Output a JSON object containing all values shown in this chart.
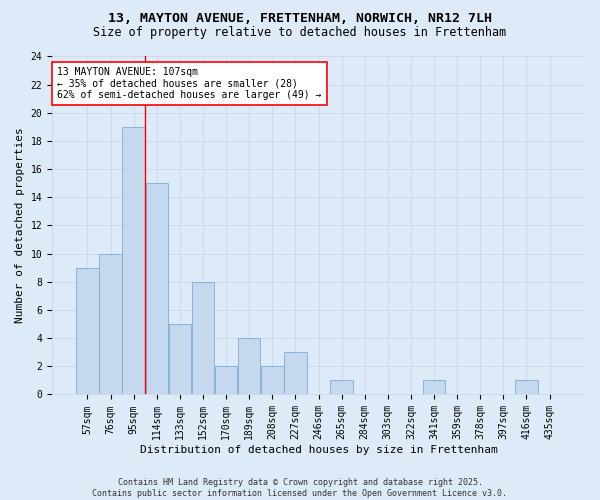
{
  "title1": "13, MAYTON AVENUE, FRETTENHAM, NORWICH, NR12 7LH",
  "title2": "Size of property relative to detached houses in Frettenham",
  "xlabel": "Distribution of detached houses by size in Frettenham",
  "ylabel": "Number of detached properties",
  "categories": [
    "57sqm",
    "76sqm",
    "95sqm",
    "114sqm",
    "133sqm",
    "152sqm",
    "170sqm",
    "189sqm",
    "208sqm",
    "227sqm",
    "246sqm",
    "265sqm",
    "284sqm",
    "303sqm",
    "322sqm",
    "341sqm",
    "359sqm",
    "378sqm",
    "397sqm",
    "416sqm",
    "435sqm"
  ],
  "values": [
    9,
    10,
    19,
    15,
    5,
    8,
    2,
    4,
    2,
    3,
    0,
    1,
    0,
    0,
    0,
    1,
    0,
    0,
    0,
    1,
    0
  ],
  "bar_color": "#c5d8ed",
  "bar_edge_color": "#7aaed6",
  "grid_color": "#c8d8e8",
  "bg_color": "#ddeaf7",
  "red_line_index": 2,
  "annotation_line1": "13 MAYTON AVENUE: 107sqm",
  "annotation_line2": "← 35% of detached houses are smaller (28)",
  "annotation_line3": "62% of semi-detached houses are larger (49) →",
  "annotation_box_color": "white",
  "annotation_box_edge": "red",
  "ylim": [
    0,
    24
  ],
  "yticks": [
    0,
    2,
    4,
    6,
    8,
    10,
    12,
    14,
    16,
    18,
    20,
    22,
    24
  ],
  "footer": "Contains HM Land Registry data © Crown copyright and database right 2025.\nContains public sector information licensed under the Open Government Licence v3.0.",
  "title_fontsize": 9.5,
  "subtitle_fontsize": 8.5,
  "tick_fontsize": 7,
  "label_fontsize": 8,
  "annotation_fontsize": 7,
  "footer_fontsize": 6
}
